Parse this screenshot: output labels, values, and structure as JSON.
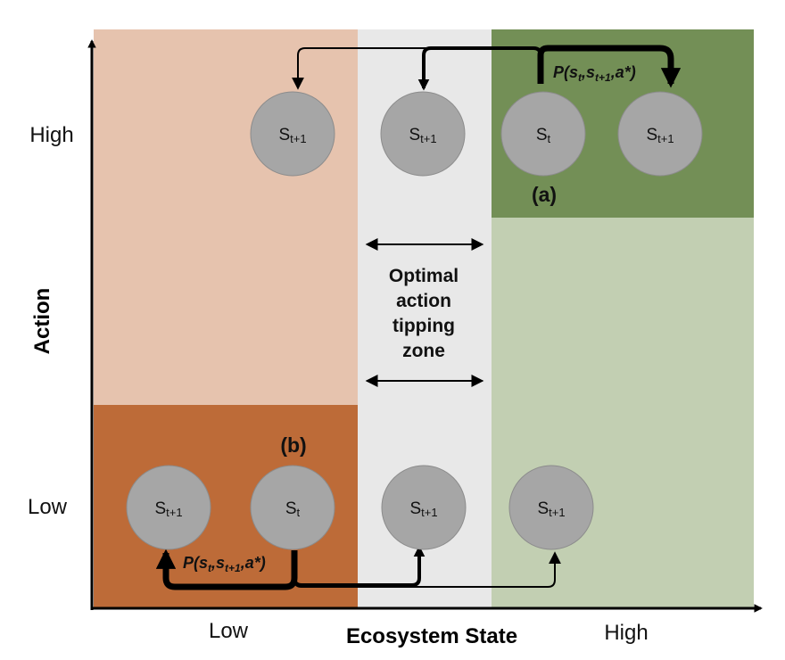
{
  "axes": {
    "x_title": "Ecosystem State",
    "y_title": "Action",
    "x_ticks": [
      "Low",
      "High"
    ],
    "y_ticks": [
      "High",
      "Low"
    ]
  },
  "zones": {
    "tipping_zone_lines": [
      "Optimal",
      "action",
      "tipping",
      "zone"
    ]
  },
  "panels": {
    "a": "(a)",
    "b": "(b)"
  },
  "nodes": {
    "high_row": [
      {
        "base": "S",
        "sub": "t+1"
      },
      {
        "base": "S",
        "sub": "t+1"
      },
      {
        "base": "S",
        "sub": "t"
      },
      {
        "base": "S",
        "sub": "t+1"
      }
    ],
    "low_row": [
      {
        "base": "S",
        "sub": "t+1"
      },
      {
        "base": "S",
        "sub": "t"
      },
      {
        "base": "S",
        "sub": "t+1"
      },
      {
        "base": "S",
        "sub": "t+1"
      }
    ]
  },
  "probability_label": {
    "prefix": "P(s",
    "sub1": "t",
    "mid": ",s",
    "sub2": "t+1",
    "suffix": ",a*)"
  },
  "colors": {
    "left_upper": "#e6c3ae",
    "left_lower": "#bd6b38",
    "middle": "#e8e8e8",
    "right_upper": "#738f56",
    "right_lower": "#c2cfb2",
    "node": "#a6a6a6",
    "node_stroke": "#8c8c8c",
    "ink": "#000000"
  }
}
